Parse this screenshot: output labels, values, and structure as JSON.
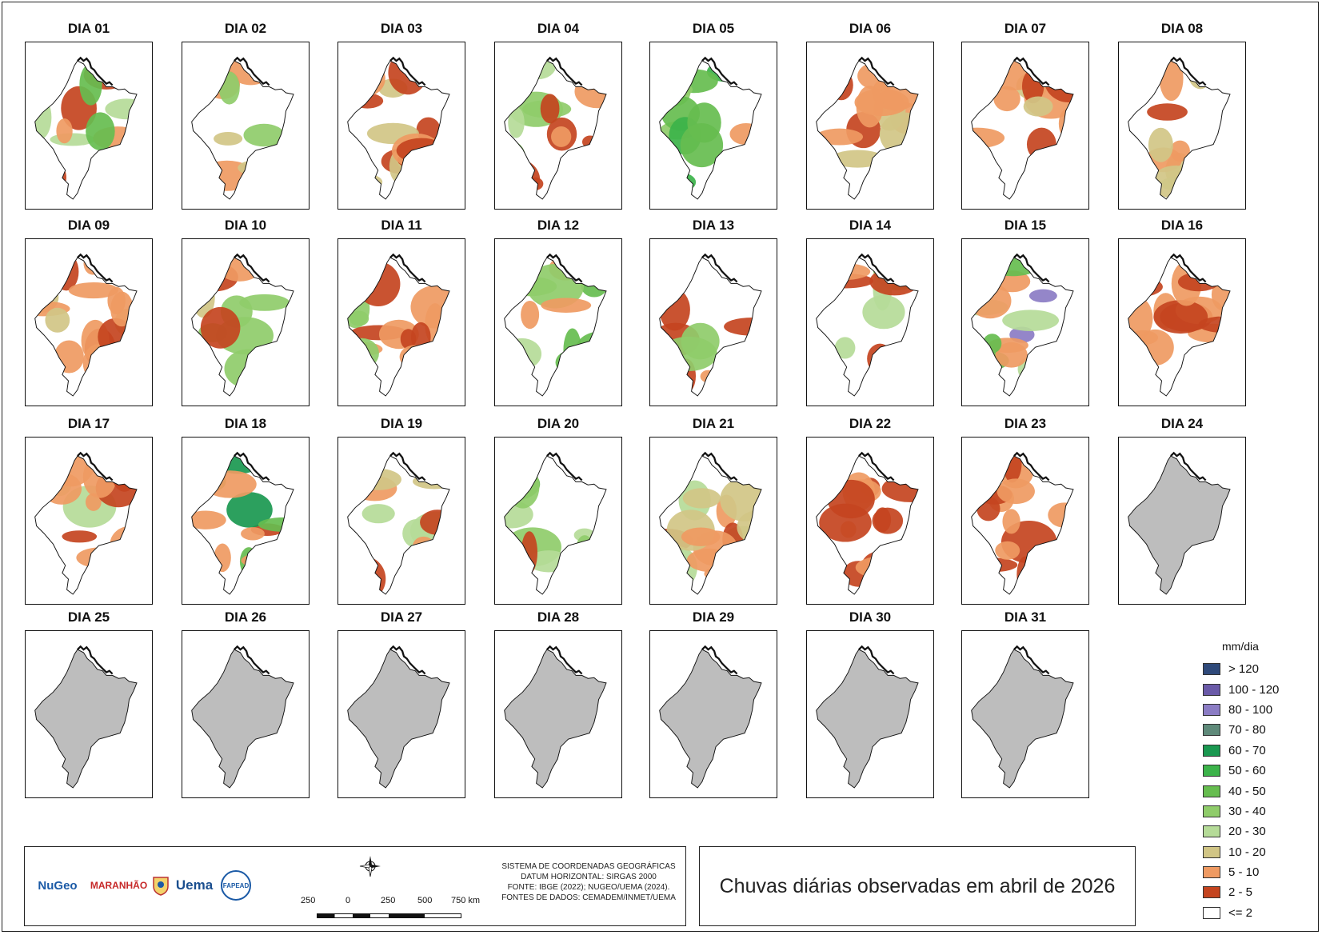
{
  "map": {
    "title": "Chuvas diárias observadas em abril de 2026",
    "panels": [
      {
        "label": "DIA 01",
        "state": "data"
      },
      {
        "label": "DIA 02",
        "state": "data"
      },
      {
        "label": "DIA 03",
        "state": "data"
      },
      {
        "label": "DIA 04",
        "state": "data"
      },
      {
        "label": "DIA 05",
        "state": "data"
      },
      {
        "label": "DIA 06",
        "state": "data"
      },
      {
        "label": "DIA 07",
        "state": "data"
      },
      {
        "label": "DIA 08",
        "state": "data"
      },
      {
        "label": "DIA 09",
        "state": "data"
      },
      {
        "label": "DIA 10",
        "state": "data"
      },
      {
        "label": "DIA 11",
        "state": "data"
      },
      {
        "label": "DIA 12",
        "state": "data"
      },
      {
        "label": "DIA 13",
        "state": "data"
      },
      {
        "label": "DIA 14",
        "state": "data"
      },
      {
        "label": "DIA 15",
        "state": "data"
      },
      {
        "label": "DIA 16",
        "state": "data"
      },
      {
        "label": "DIA 17",
        "state": "data"
      },
      {
        "label": "DIA 18",
        "state": "data"
      },
      {
        "label": "DIA 19",
        "state": "data"
      },
      {
        "label": "DIA 20",
        "state": "data"
      },
      {
        "label": "DIA 21",
        "state": "data"
      },
      {
        "label": "DIA 22",
        "state": "data"
      },
      {
        "label": "DIA 23",
        "state": "data"
      },
      {
        "label": "DIA 24",
        "state": "nodata"
      },
      {
        "label": "DIA 25",
        "state": "nodata"
      },
      {
        "label": "DIA 26",
        "state": "nodata"
      },
      {
        "label": "DIA 27",
        "state": "nodata"
      },
      {
        "label": "DIA 28",
        "state": "nodata"
      },
      {
        "label": "DIA 29",
        "state": "nodata"
      },
      {
        "label": "DIA 30",
        "state": "nodata"
      },
      {
        "label": "DIA 31",
        "state": "nodata"
      }
    ]
  },
  "legend": {
    "title": "mm/dia",
    "classes": [
      {
        "label": "> 120",
        "color": "#2f4a7a"
      },
      {
        "label": "100 - 120",
        "color": "#6a5aa8"
      },
      {
        "label": "80 - 100",
        "color": "#8b7cc4"
      },
      {
        "label": "70 - 80",
        "color": "#5f8a7a"
      },
      {
        "label": "60 - 70",
        "color": "#1a9850"
      },
      {
        "label": "50 - 60",
        "color": "#3cb34a"
      },
      {
        "label": "40 - 50",
        "color": "#66bd4f"
      },
      {
        "label": "30 - 40",
        "color": "#8fcc6a"
      },
      {
        "label": "20 - 30",
        "color": "#b5db98"
      },
      {
        "label": "10 - 20",
        "color": "#d1c585"
      },
      {
        "label": "5 - 10",
        "color": "#ef9a62"
      },
      {
        "label": "2 - 5",
        "color": "#c4441f"
      },
      {
        "label": "<= 2",
        "color": "#ffffff"
      }
    ]
  },
  "colors": {
    "nodata_fill": "#bdbdbd",
    "outline": "#111111"
  },
  "footer": {
    "crs_lines": [
      "SISTEMA DE COORDENADAS GEOGRÁFICAS",
      "DATUM HORIZONTAL: SIRGAS 2000",
      "FONTE: IBGE (2022); NUGEO/UEMA (2024).",
      "FONTES DE DADOS: CEMADEM/INMET/UEMA"
    ],
    "scale_labels": [
      "250",
      "0",
      "250",
      "500",
      "750 km"
    ],
    "logos": [
      "NuGeo",
      "MARANHÃO",
      "Uema",
      "FAPEAD"
    ]
  }
}
